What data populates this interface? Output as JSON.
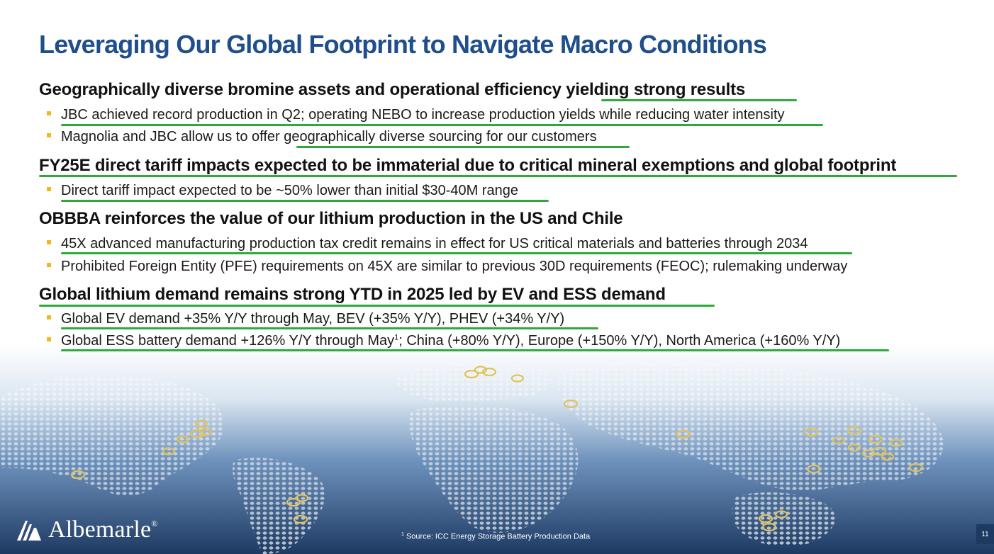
{
  "slide": {
    "title": "Leveraging Our Global Footprint to Navigate Macro Conditions",
    "page_number": "11"
  },
  "sections": [
    {
      "heading": "Geographically diverse bromine assets and operational efficiency yielding strong results",
      "bullets": [
        "JBC achieved record production in Q2; operating NEBO to increase production yields while reducing water intensity",
        "Magnolia and JBC allow us to offer geographically diverse sourcing for our customers"
      ]
    },
    {
      "heading": "FY25E direct tariff impacts expected to be immaterial due to critical mineral exemptions and global footprint",
      "bullets": [
        "Direct tariff impact expected to be ~50% lower than initial $30-40M range"
      ]
    },
    {
      "heading": "OBBBA reinforces the value of our lithium production in the US and Chile",
      "bullets": [
        "45X advanced manufacturing production tax credit remains in effect for US critical materials and batteries through 2034",
        "Prohibited Foreign Entity (PFE) requirements on 45X are similar to previous 30D requirements (FEOC); rulemaking underway"
      ]
    },
    {
      "heading": "Global lithium demand remains strong YTD in 2025 led by EV and ESS demand",
      "bullets": [
        "Global EV demand +35% Y/Y through May, BEV (+35% Y/Y), PHEV (+34% Y/Y)",
        "Global ESS battery demand +126% Y/Y through May"
      ],
      "bullet_1_superscript": "1",
      "bullet_1_tail": "; China (+80% Y/Y), Europe (+150% Y/Y), North America (+160% Y/Y)"
    }
  ],
  "logo": {
    "name": "Albemarle",
    "registered_mark": "®"
  },
  "footnote": {
    "marker": "1",
    "text": "Source: ICC Energy Storage Battery Production Data"
  },
  "colors": {
    "title_blue": "#1f4e8c",
    "underline_green": "#2daa3c",
    "bullet_yellow": "#f2b81d",
    "map_dark_blue": "#1d3a63",
    "location_gold": "#e3c25a"
  },
  "icons": {
    "bullet": "square-bullet-icon",
    "logo_mark": "albemarle-triangle-logo-icon",
    "location": "location-marker-icon"
  }
}
